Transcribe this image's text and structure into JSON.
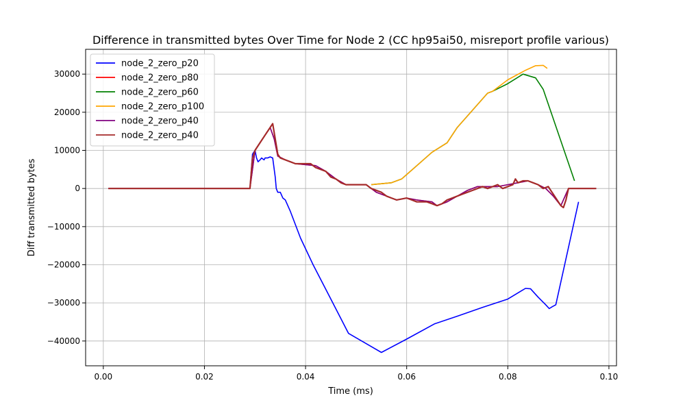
{
  "chart_data": {
    "type": "line",
    "title": "Difference in transmitted bytes Over Time for Node 2 (CC hp95ai50, misreport profile various)",
    "xlabel": "Time (ms)",
    "ylabel": "Diff transmitted bytes",
    "xlim": [
      -0.0035,
      0.1015
    ],
    "ylim": [
      -46500,
      36500
    ],
    "xticks": [
      0.0,
      0.02,
      0.04,
      0.06,
      0.08,
      0.1
    ],
    "xtick_labels": [
      "0.00",
      "0.02",
      "0.04",
      "0.06",
      "0.08",
      "0.10"
    ],
    "yticks": [
      -40000,
      -30000,
      -20000,
      -10000,
      0,
      10000,
      20000,
      30000
    ],
    "ytick_labels": [
      "−40000",
      "−30000",
      "−20000",
      "−10000",
      "0",
      "10000",
      "20000",
      "30000"
    ],
    "grid": true,
    "legend_position": "top-left",
    "series": [
      {
        "name": "node_2_zero_p20",
        "color": "#0000ff",
        "x": [
          0.001,
          0.029,
          0.0295,
          0.03,
          0.0303,
          0.0306,
          0.031,
          0.0313,
          0.0318,
          0.032,
          0.0325,
          0.033,
          0.0335,
          0.034,
          0.0342,
          0.0345,
          0.035,
          0.0355,
          0.036,
          0.037,
          0.039,
          0.0415,
          0.045,
          0.0485,
          0.055,
          0.06,
          0.0655,
          0.07,
          0.075,
          0.08,
          0.0835,
          0.0845,
          0.086,
          0.0875,
          0.0882,
          0.0888,
          0.0895,
          0.094
        ],
        "y": [
          0,
          0,
          9000,
          10000,
          8000,
          7000,
          7500,
          8000,
          7500,
          8000,
          8000,
          8300,
          8000,
          3000,
          0,
          -1000,
          -1000,
          -2500,
          -3000,
          -6000,
          -13000,
          -20000,
          -29000,
          -38000,
          -43000,
          -39500,
          -35500,
          -33500,
          -31200,
          -29000,
          -26200,
          -26300,
          -28500,
          -30500,
          -31500,
          -31000,
          -30500,
          -3500
        ]
      },
      {
        "name": "node_2_zero_p80",
        "color": "#ff0000",
        "x": [
          0.001,
          0.029,
          0.03,
          0.0315,
          0.033,
          0.0338,
          0.0345,
          0.036,
          0.038,
          0.042,
          0.044,
          0.046,
          0.048,
          0.052,
          0.054,
          0.056,
          0.058,
          0.06,
          0.062,
          0.065,
          0.066,
          0.068,
          0.07,
          0.072,
          0.074,
          0.076,
          0.078,
          0.08,
          0.082,
          0.084,
          0.086,
          0.0875,
          0.089,
          0.0905,
          0.0915,
          0.092,
          0.0975
        ],
        "y": [
          0,
          0,
          10000,
          13000,
          16000,
          13000,
          8500,
          7500,
          6500,
          6000,
          4500,
          2500,
          1000,
          1000,
          -1000,
          -2000,
          -3000,
          -2500,
          -3000,
          -3500,
          -4500,
          -3500,
          -2000,
          -500,
          500,
          500,
          500,
          1000,
          1500,
          2000,
          1000,
          0,
          -2000,
          -4500,
          -1500,
          0,
          0
        ]
      },
      {
        "name": "node_2_zero_p60",
        "color": "#008000",
        "x": [
          0.053,
          0.057,
          0.059,
          0.062,
          0.065,
          0.068,
          0.07,
          0.073,
          0.076,
          0.077,
          0.08,
          0.083,
          0.0855,
          0.087,
          0.0932
        ],
        "y": [
          1000,
          1500,
          2500,
          6000,
          9500,
          12000,
          16000,
          20500,
          25000,
          25500,
          27500,
          30000,
          29000,
          26000,
          2000
        ]
      },
      {
        "name": "node_2_zero_p100",
        "color": "#ffa500",
        "x": [
          0.053,
          0.057,
          0.059,
          0.062,
          0.065,
          0.068,
          0.07,
          0.073,
          0.076,
          0.077,
          0.08,
          0.0835,
          0.0855,
          0.087,
          0.0878
        ],
        "y": [
          1000,
          1500,
          2500,
          6000,
          9500,
          12000,
          16000,
          20500,
          25000,
          25500,
          28500,
          31000,
          32200,
          32300,
          31500
        ]
      },
      {
        "name": "node_2_zero_p40",
        "color": "#800080",
        "x": [
          0.001,
          0.029,
          0.03,
          0.0315,
          0.033,
          0.0338,
          0.0345,
          0.036,
          0.038,
          0.042,
          0.044,
          0.046,
          0.048,
          0.052,
          0.054,
          0.056,
          0.058,
          0.06,
          0.062,
          0.065,
          0.066,
          0.068,
          0.07,
          0.072,
          0.074,
          0.076,
          0.078,
          0.08,
          0.082,
          0.084,
          0.086,
          0.0875,
          0.089,
          0.0905,
          0.0915,
          0.092,
          0.0975
        ],
        "y": [
          0,
          0,
          10000,
          13000,
          16000,
          13000,
          8500,
          7500,
          6500,
          6000,
          4500,
          2500,
          1000,
          1000,
          -1000,
          -2000,
          -3000,
          -2500,
          -3000,
          -3500,
          -4500,
          -3500,
          -2000,
          -500,
          500,
          500,
          500,
          1000,
          1500,
          2000,
          1000,
          0,
          -2000,
          -4500,
          -1500,
          0,
          0
        ]
      },
      {
        "name": "node_2_zero_p40",
        "color": "#a52a2a",
        "x": [
          0.001,
          0.029,
          0.0295,
          0.03,
          0.031,
          0.032,
          0.033,
          0.0335,
          0.034,
          0.0345,
          0.035,
          0.037,
          0.038,
          0.041,
          0.042,
          0.044,
          0.045,
          0.046,
          0.047,
          0.048,
          0.052,
          0.053,
          0.055,
          0.056,
          0.057,
          0.058,
          0.06,
          0.061,
          0.062,
          0.064,
          0.065,
          0.066,
          0.067,
          0.068,
          0.069,
          0.07,
          0.071,
          0.072,
          0.073,
          0.074,
          0.075,
          0.076,
          0.077,
          0.078,
          0.079,
          0.08,
          0.081,
          0.0815,
          0.082,
          0.083,
          0.084,
          0.085,
          0.086,
          0.087,
          0.088,
          0.0885,
          0.089,
          0.0895,
          0.09,
          0.0905,
          0.091,
          0.0915,
          0.092,
          0.0975
        ],
        "y": [
          0,
          0,
          8000,
          10000,
          12000,
          14000,
          16000,
          17000,
          13000,
          9000,
          8000,
          7000,
          6500,
          6500,
          5500,
          4500,
          3000,
          2500,
          1500,
          1000,
          1000,
          0,
          -1000,
          -2000,
          -2500,
          -3000,
          -2500,
          -3000,
          -3500,
          -3500,
          -4000,
          -4500,
          -4000,
          -3000,
          -2500,
          -2000,
          -1500,
          -1000,
          -500,
          0,
          500,
          0,
          500,
          1000,
          0,
          500,
          1000,
          2500,
          1500,
          2000,
          2000,
          1500,
          1000,
          0,
          500,
          -500,
          -1500,
          -2500,
          -3500,
          -4500,
          -5000,
          -3000,
          0,
          0
        ]
      }
    ]
  }
}
